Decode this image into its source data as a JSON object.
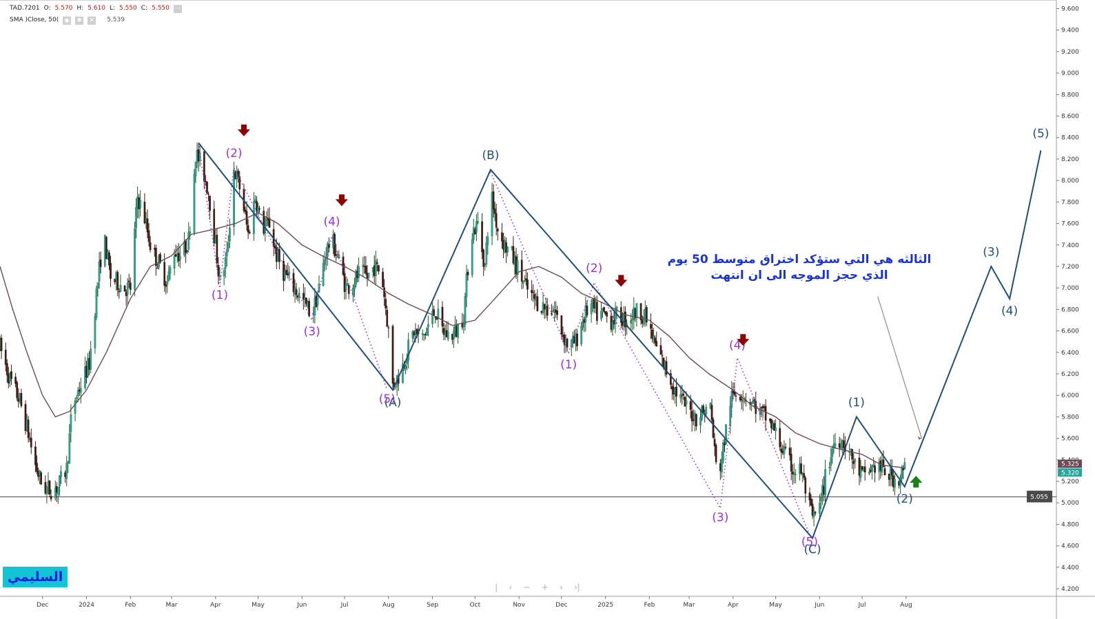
{
  "legend": {
    "symbol": "TAD.7201",
    "o_label": "O:",
    "o_value": "5.570",
    "h_label": "H:",
    "h_value": "5.610",
    "l_label": "L:",
    "l_value": "5.550",
    "c_label": "C:",
    "c_value": "5.550",
    "sma_label": "SMA  )Close, 50(",
    "sma_value": "5.539",
    "more_icon": "ellipsis-icon",
    "sma_icons": [
      "eye-icon",
      "gear-icon",
      "close-icon"
    ]
  },
  "annotation": {
    "line1": "الثالثه هي التي ستؤكد اختراق متوسط 50 يوم",
    "line2": "الذي حجز الموجه الى ان انتهت"
  },
  "author_badge": "السليمي",
  "nav_controls": [
    "|",
    "‹",
    "−",
    "+",
    "›",
    "›|"
  ],
  "colors": {
    "up": "#26a69a",
    "up_dark": "#1b5e20",
    "down": "#3e1a12",
    "sma": "#6b4a55",
    "wave": "#1f4e79",
    "sub_wave": "#9b30d9",
    "arrow_down": "#8b0000",
    "arrow_up": "#1b7f1b",
    "annotation": "#1a33d6"
  },
  "chart_data": {
    "type": "candlestick",
    "symbol": "TAD.7201",
    "y_axis": {
      "ticks": [
        "4.200",
        "4.400",
        "4.600",
        "4.800",
        "5.000",
        "5.200",
        "5.400",
        "5.600",
        "5.800",
        "6.000",
        "6.200",
        "6.400",
        "6.600",
        "6.800",
        "7.000",
        "7.200",
        "7.400",
        "7.600",
        "7.800",
        "8.000",
        "8.200",
        "8.400",
        "8.600",
        "8.800",
        "9.000",
        "9.200",
        "9.400",
        "9.600"
      ],
      "range": [
        4.13,
        9.68
      ],
      "position": "right"
    },
    "x_axis": {
      "labels": [
        "Dec",
        "2024",
        "Feb",
        "Mar",
        "Apr",
        "May",
        "Jun",
        "Jul",
        "Aug",
        "Sep",
        "Oct",
        "Nov",
        "Dec",
        "2025",
        "Feb",
        "Mar",
        "Apr",
        "May",
        "Jun",
        "Jul",
        "Aug"
      ],
      "range": [
        "2023-11-01",
        "2025-11-15"
      ]
    },
    "price_labels": [
      {
        "value": 5.325,
        "text": "5.325",
        "kind": "sma",
        "color": "#6b4a55"
      },
      {
        "value": 5.32,
        "text": "5.320",
        "kind": "last",
        "color": "#26a69a"
      },
      {
        "value": 5.055,
        "text": "5.055",
        "kind": "line",
        "color": "#4a4a4a"
      }
    ],
    "horizontal_line": 5.055,
    "price_path": [
      [
        "2023-11-01",
        6.45
      ],
      [
        "2023-11-08",
        6.15
      ],
      [
        "2023-11-15",
        5.95
      ],
      [
        "2023-11-20",
        5.7
      ],
      [
        "2023-11-26",
        5.35
      ],
      [
        "2023-12-01",
        5.15
      ],
      [
        "2023-12-06",
        5.12
      ],
      [
        "2023-12-12",
        5.15
      ],
      [
        "2023-12-18",
        5.32
      ],
      [
        "2023-12-22",
        5.9
      ],
      [
        "2023-12-28",
        6.1
      ],
      [
        "2024-01-03",
        6.3
      ],
      [
        "2024-01-08",
        6.95
      ],
      [
        "2024-01-13",
        7.5
      ],
      [
        "2024-01-18",
        7.1
      ],
      [
        "2024-01-23",
        7.05
      ],
      [
        "2024-01-28",
        7.0
      ],
      [
        "2024-02-01",
        7.0
      ],
      [
        "2024-02-06",
        7.85
      ],
      [
        "2024-02-11",
        7.65
      ],
      [
        "2024-02-16",
        7.35
      ],
      [
        "2024-02-22",
        7.2
      ],
      [
        "2024-02-27",
        7.05
      ],
      [
        "2024-03-03",
        7.35
      ],
      [
        "2024-03-08",
        7.3
      ],
      [
        "2024-03-13",
        7.45
      ],
      [
        "2024-03-18",
        8.25
      ],
      [
        "2024-03-22",
        8.15
      ],
      [
        "2024-03-27",
        7.9
      ],
      [
        "2024-04-01",
        7.4
      ],
      [
        "2024-04-04",
        7.05
      ],
      [
        "2024-04-09",
        7.3
      ],
      [
        "2024-04-14",
        8.1
      ],
      [
        "2024-04-19",
        7.9
      ],
      [
        "2024-04-24",
        7.5
      ],
      [
        "2024-04-29",
        7.85
      ],
      [
        "2024-05-04",
        7.55
      ],
      [
        "2024-05-09",
        7.6
      ],
      [
        "2024-05-14",
        7.3
      ],
      [
        "2024-05-19",
        7.15
      ],
      [
        "2024-05-24",
        7.05
      ],
      [
        "2024-05-29",
        6.95
      ],
      [
        "2024-06-03",
        6.85
      ],
      [
        "2024-06-08",
        6.75
      ],
      [
        "2024-06-13",
        7.0
      ],
      [
        "2024-06-18",
        7.35
      ],
      [
        "2024-06-22",
        7.45
      ],
      [
        "2024-06-27",
        7.25
      ],
      [
        "2024-07-02",
        7.0
      ],
      [
        "2024-07-07",
        7.05
      ],
      [
        "2024-07-12",
        7.15
      ],
      [
        "2024-07-17",
        7.1
      ],
      [
        "2024-07-22",
        7.2
      ],
      [
        "2024-07-27",
        7.15
      ],
      [
        "2024-08-01",
        6.6
      ],
      [
        "2024-08-04",
        6.1
      ],
      [
        "2024-08-09",
        6.2
      ],
      [
        "2024-08-14",
        6.4
      ],
      [
        "2024-08-19",
        6.6
      ],
      [
        "2024-08-24",
        6.5
      ],
      [
        "2024-08-29",
        6.65
      ],
      [
        "2024-09-03",
        6.8
      ],
      [
        "2024-09-08",
        6.6
      ],
      [
        "2024-09-13",
        6.55
      ],
      [
        "2024-09-18",
        6.6
      ],
      [
        "2024-09-23",
        6.75
      ],
      [
        "2024-09-28",
        7.5
      ],
      [
        "2024-10-03",
        7.6
      ],
      [
        "2024-10-08",
        7.2
      ],
      [
        "2024-10-12",
        7.9
      ],
      [
        "2024-10-17",
        7.55
      ],
      [
        "2024-10-22",
        7.4
      ],
      [
        "2024-10-27",
        7.3
      ],
      [
        "2024-11-01",
        7.15
      ],
      [
        "2024-11-06",
        7.0
      ],
      [
        "2024-11-11",
        6.9
      ],
      [
        "2024-11-16",
        6.85
      ],
      [
        "2024-11-21",
        6.8
      ],
      [
        "2024-11-26",
        6.8
      ],
      [
        "2024-12-01",
        6.6
      ],
      [
        "2024-12-06",
        6.45
      ],
      [
        "2024-12-11",
        6.5
      ],
      [
        "2024-12-16",
        6.7
      ],
      [
        "2024-12-21",
        6.85
      ],
      [
        "2024-12-26",
        6.75
      ],
      [
        "2024-12-31",
        6.75
      ],
      [
        "2025-01-05",
        6.7
      ],
      [
        "2025-01-10",
        6.75
      ],
      [
        "2025-01-15",
        6.7
      ],
      [
        "2025-01-20",
        6.75
      ],
      [
        "2025-01-25",
        6.8
      ],
      [
        "2025-01-30",
        6.7
      ],
      [
        "2025-02-04",
        6.5
      ],
      [
        "2025-02-09",
        6.35
      ],
      [
        "2025-02-14",
        6.2
      ],
      [
        "2025-02-19",
        6.05
      ],
      [
        "2025-02-24",
        5.95
      ],
      [
        "2025-03-01",
        5.85
      ],
      [
        "2025-03-06",
        5.8
      ],
      [
        "2025-03-11",
        5.85
      ],
      [
        "2025-03-16",
        5.9
      ],
      [
        "2025-03-21",
        5.2
      ],
      [
        "2025-03-25",
        5.5
      ],
      [
        "2025-03-30",
        5.95
      ],
      [
        "2025-04-04",
        6.05
      ],
      [
        "2025-04-09",
        6.0
      ],
      [
        "2025-04-14",
        5.95
      ],
      [
        "2025-04-19",
        5.85
      ],
      [
        "2025-04-24",
        5.8
      ],
      [
        "2025-04-29",
        5.7
      ],
      [
        "2025-05-04",
        5.55
      ],
      [
        "2025-05-09",
        5.4
      ],
      [
        "2025-05-14",
        5.3
      ],
      [
        "2025-05-19",
        5.3
      ],
      [
        "2025-05-24",
        5.0
      ],
      [
        "2025-05-27",
        4.85
      ],
      [
        "2025-06-01",
        4.95
      ],
      [
        "2025-06-06",
        5.3
      ],
      [
        "2025-06-11",
        5.55
      ],
      [
        "2025-06-16",
        5.6
      ],
      [
        "2025-06-21",
        5.5
      ],
      [
        "2025-06-26",
        5.35
      ],
      [
        "2025-07-01",
        5.25
      ],
      [
        "2025-07-06",
        5.3
      ],
      [
        "2025-07-11",
        5.35
      ],
      [
        "2025-07-16",
        5.3
      ],
      [
        "2025-07-21",
        5.25
      ],
      [
        "2025-07-26",
        5.2
      ],
      [
        "2025-07-31",
        5.32
      ]
    ],
    "sma_label": "SMA (Close, 50)",
    "sma_path": [
      [
        "2023-11-01",
        7.2
      ],
      [
        "2023-11-10",
        6.8
      ],
      [
        "2023-11-20",
        6.4
      ],
      [
        "2023-12-01",
        6.0
      ],
      [
        "2023-12-10",
        5.8
      ],
      [
        "2023-12-20",
        5.85
      ],
      [
        "2024-01-01",
        6.05
      ],
      [
        "2024-01-15",
        6.4
      ],
      [
        "2024-02-01",
        6.9
      ],
      [
        "2024-02-15",
        7.2
      ],
      [
        "2024-03-01",
        7.3
      ],
      [
        "2024-03-15",
        7.5
      ],
      [
        "2024-04-01",
        7.55
      ],
      [
        "2024-04-15",
        7.6
      ],
      [
        "2024-05-01",
        7.7
      ],
      [
        "2024-05-15",
        7.6
      ],
      [
        "2024-06-01",
        7.4
      ],
      [
        "2024-06-15",
        7.3
      ],
      [
        "2024-07-01",
        7.2
      ],
      [
        "2024-07-15",
        7.1
      ],
      [
        "2024-08-01",
        6.95
      ],
      [
        "2024-08-15",
        6.85
      ],
      [
        "2024-09-01",
        6.75
      ],
      [
        "2024-09-15",
        6.65
      ],
      [
        "2024-10-01",
        6.7
      ],
      [
        "2024-10-15",
        6.9
      ],
      [
        "2024-11-01",
        7.15
      ],
      [
        "2024-11-15",
        7.2
      ],
      [
        "2024-12-01",
        7.1
      ],
      [
        "2024-12-15",
        6.95
      ],
      [
        "2025-01-01",
        6.85
      ],
      [
        "2025-01-15",
        6.75
      ],
      [
        "2025-02-01",
        6.7
      ],
      [
        "2025-02-15",
        6.55
      ],
      [
        "2025-03-01",
        6.35
      ],
      [
        "2025-03-15",
        6.2
      ],
      [
        "2025-04-01",
        6.05
      ],
      [
        "2025-04-15",
        5.9
      ],
      [
        "2025-05-01",
        5.8
      ],
      [
        "2025-05-15",
        5.65
      ],
      [
        "2025-06-01",
        5.55
      ],
      [
        "2025-06-15",
        5.5
      ],
      [
        "2025-07-01",
        5.45
      ],
      [
        "2025-07-15",
        5.35
      ],
      [
        "2025-07-31",
        5.325
      ]
    ],
    "main_wave_lines": [
      [
        [
          "2024-03-20",
          8.35
        ],
        [
          "2024-08-04",
          6.05
        ],
        [
          "2024-10-12",
          8.1
        ],
        [
          "2025-05-27",
          4.67
        ],
        [
          "2025-06-27",
          5.8
        ],
        [
          "2025-07-31",
          5.15
        ],
        [
          "2025-09-30",
          7.2
        ],
        [
          "2025-10-13",
          6.9
        ],
        [
          "2025-11-04",
          8.28
        ]
      ]
    ],
    "sub_wave_lines": [
      [
        [
          "2024-03-20",
          8.35
        ],
        [
          "2024-04-04",
          7.0
        ],
        [
          "2024-04-14",
          8.12
        ],
        [
          "2024-06-08",
          6.7
        ],
        [
          "2024-06-22",
          7.48
        ],
        [
          "2024-07-31",
          6.05
        ]
      ],
      [
        [
          "2024-10-12",
          8.08
        ],
        [
          "2024-12-06",
          6.4
        ],
        [
          "2024-12-24",
          7.05
        ],
        [
          "2025-03-23",
          4.95
        ],
        [
          "2025-04-04",
          6.35
        ],
        [
          "2025-05-25",
          4.7
        ]
      ]
    ],
    "wave_labels": [
      {
        "text": "(A)",
        "x": "2024-08-04",
        "y": 5.9,
        "level": "main"
      },
      {
        "text": "(B)",
        "x": "2024-10-12",
        "y": 8.2,
        "level": "main"
      },
      {
        "text": "(C)",
        "x": "2025-05-27",
        "y": 4.53,
        "level": "main"
      },
      {
        "text": "(1)",
        "x": "2025-06-27",
        "y": 5.9,
        "level": "main"
      },
      {
        "text": "(2)",
        "x": "2025-07-31",
        "y": 5.0,
        "level": "main"
      },
      {
        "text": "(3)",
        "x": "2025-09-30",
        "y": 7.3,
        "level": "main"
      },
      {
        "text": "(4)",
        "x": "2025-10-13",
        "y": 6.75,
        "level": "main"
      },
      {
        "text": "(5)",
        "x": "2025-11-04",
        "y": 8.4,
        "level": "main"
      },
      {
        "text": "(1)",
        "x": "2024-04-04",
        "y": 6.9,
        "level": "sub"
      },
      {
        "text": "(2)",
        "x": "2024-04-14",
        "y": 8.22,
        "level": "sub"
      },
      {
        "text": "(3)",
        "x": "2024-06-08",
        "y": 6.56,
        "level": "sub"
      },
      {
        "text": "(4)",
        "x": "2024-06-22",
        "y": 7.58,
        "level": "sub"
      },
      {
        "text": "(5)",
        "x": "2024-07-31",
        "y": 5.93,
        "level": "sub"
      },
      {
        "text": "(1)",
        "x": "2024-12-06",
        "y": 6.25,
        "level": "sub"
      },
      {
        "text": "(2)",
        "x": "2024-12-24",
        "y": 7.15,
        "level": "sub"
      },
      {
        "text": "(3)",
        "x": "2025-03-23",
        "y": 4.83,
        "level": "sub"
      },
      {
        "text": "(4)",
        "x": "2025-04-04",
        "y": 6.43,
        "level": "sub"
      },
      {
        "text": "(5)",
        "x": "2025-05-25",
        "y": 4.6,
        "level": "sub"
      }
    ],
    "signal_arrows": [
      {
        "direction": "down",
        "x": "2024-04-21",
        "y": 8.45
      },
      {
        "direction": "down",
        "x": "2024-06-29",
        "y": 7.8
      },
      {
        "direction": "down",
        "x": "2025-01-12",
        "y": 7.05
      },
      {
        "direction": "down",
        "x": "2025-04-08",
        "y": 6.5
      },
      {
        "direction": "up",
        "x": "2025-08-08",
        "y": 5.2
      }
    ],
    "annotation_pointer": [
      [
        "2025-07-12",
        6.92
      ],
      [
        "2025-08-12",
        5.6
      ]
    ]
  }
}
